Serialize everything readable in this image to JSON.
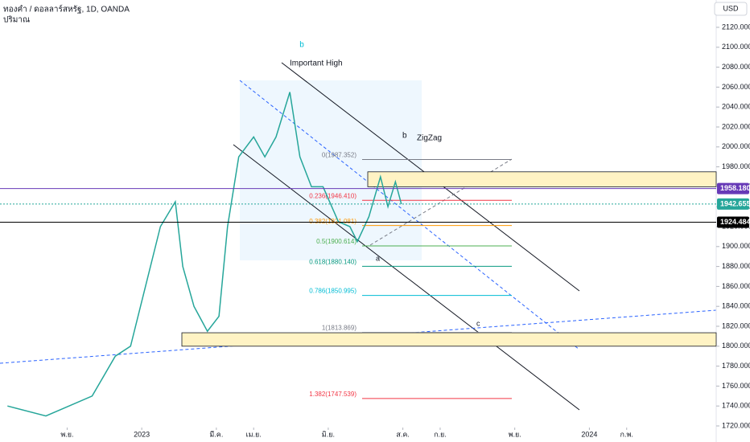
{
  "chart_data": {
    "type": "line",
    "title": "ทองคำ / ดอลลาร์สหรัฐ, 1D, OANDA",
    "subtitle": "ปริมาณ",
    "currency": "USD",
    "xlim": [
      -0.8,
      18.4
    ],
    "xticks": [
      {
        "value": 1,
        "label": "พ.ย."
      },
      {
        "value": 3,
        "label": "2023"
      },
      {
        "value": 5,
        "label": "มี.ค."
      },
      {
        "value": 6,
        "label": "เม.ย."
      },
      {
        "value": 8,
        "label": "มิ.ย."
      },
      {
        "value": 10,
        "label": "ส.ค."
      },
      {
        "value": 11,
        "label": "ก.ย."
      },
      {
        "value": 13,
        "label": "พ.ย."
      },
      {
        "value": 15,
        "label": "2024"
      },
      {
        "value": 16,
        "label": "ก.พ."
      }
    ],
    "ylim": [
      1720,
      2120
    ],
    "yticks": [
      {
        "value": 1720,
        "label": "1720.000"
      },
      {
        "value": 1740,
        "label": "1740.000"
      },
      {
        "value": 1760,
        "label": "1760.000"
      },
      {
        "value": 1780,
        "label": "1780.000"
      },
      {
        "value": 1800,
        "label": "1800.000"
      },
      {
        "value": 1820,
        "label": "1820.000"
      },
      {
        "value": 1840,
        "label": "1840.000"
      },
      {
        "value": 1860,
        "label": "1860.000"
      },
      {
        "value": 1880,
        "label": "1880.000"
      },
      {
        "value": 1900,
        "label": "1900.000"
      },
      {
        "value": 1920,
        "label": "1920.000"
      },
      {
        "value": 1940,
        "label": "1940.000"
      },
      {
        "value": 1960,
        "label": "1960.000"
      },
      {
        "value": 1980,
        "label": "1980.000"
      },
      {
        "value": 2000,
        "label": "2000.000"
      },
      {
        "value": 2020,
        "label": "2020.000"
      },
      {
        "value": 2040,
        "label": "2040.000"
      },
      {
        "value": 2060,
        "label": "2060.000"
      },
      {
        "value": 2080,
        "label": "2080.000"
      },
      {
        "value": 2100,
        "label": "2100.000"
      },
      {
        "value": 2120,
        "label": "2120.000"
      }
    ],
    "series": [
      {
        "color": "#26a69a",
        "x": [
          -0.6,
          0.43,
          1.67,
          2.29,
          2.7,
          3.1,
          3.5,
          3.9,
          4.1,
          4.4,
          4.76,
          5.07,
          5.3,
          5.6,
          6.0,
          6.3,
          6.6,
          6.97,
          7.24,
          7.55,
          7.86,
          8.27,
          8.58,
          8.78,
          9.09,
          9.4,
          9.6,
          9.8,
          9.96
        ],
        "values": [
          1740,
          1730,
          1750,
          1790,
          1800,
          1860,
          1920,
          1945,
          1880,
          1840,
          1815,
          1830,
          1920,
          1990,
          2010,
          1990,
          2010,
          2055,
          1990,
          1960,
          1960,
          1925,
          1920,
          1905,
          1930,
          1970,
          1940,
          1965,
          1942.655
        ]
      }
    ],
    "price_lines": [
      {
        "value": 1958.18,
        "label": "1958.180",
        "color": "#673ab7"
      },
      {
        "value": 1942.655,
        "label": "1942.655",
        "color": "#26a69a"
      },
      {
        "value": 1924.484,
        "label": "1924.484",
        "color": "#000000"
      }
    ],
    "fib_levels": [
      {
        "value": 1987.352,
        "label": "0(1987.352)",
        "color": "#787b86"
      },
      {
        "value": 1946.41,
        "label": "0.236(1946.410)",
        "color": "#f23645"
      },
      {
        "value": 1921.081,
        "label": "0.382(1921.081)",
        "color": "#ff9800"
      },
      {
        "value": 1900.614,
        "label": "0.5(1900.614)",
        "color": "#4caf50"
      },
      {
        "value": 1880.14,
        "label": "0.618(1880.140)",
        "color": "#089981"
      },
      {
        "value": 1850.995,
        "label": "0.786(1850.995)",
        "color": "#00bcd4"
      },
      {
        "value": 1813.869,
        "label": "1(1813.869)",
        "color": "#787b86"
      },
      {
        "value": 1747.539,
        "label": "1.382(1747.539)",
        "color": "#f23645"
      }
    ],
    "annotations": [
      "b",
      "Important High",
      "b",
      "ZigZag",
      "a",
      "c"
    ]
  }
}
